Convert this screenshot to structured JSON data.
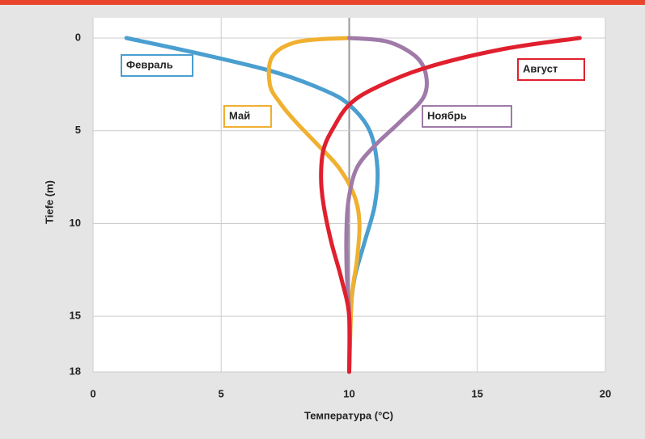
{
  "chart_data": {
    "type": "line",
    "xlabel": "Температура (°C)",
    "ylabel": "Tiefe (m)",
    "xlim": [
      0,
      20
    ],
    "xticks": [
      0,
      5,
      10,
      15,
      20
    ],
    "ylim": [
      0,
      18
    ],
    "yticks": [
      0,
      5,
      10,
      15,
      18
    ],
    "y_inverted": true,
    "grid": true,
    "series": [
      {
        "name": "Февраль",
        "color": "#4a9fd0",
        "x": [
          1.3,
          4,
          7,
          9,
          10,
          10.8,
          11.1,
          11,
          10.6,
          10.2,
          10.05,
          10
        ],
        "y": [
          0,
          0.8,
          1.8,
          2.8,
          3.6,
          5,
          7,
          9,
          11,
          13,
          15,
          18
        ]
      },
      {
        "name": "Май",
        "color": "#f0b030",
        "x": [
          10,
          8,
          7,
          6.9,
          7.3,
          7.9,
          8.8,
          9.6,
          10.2,
          10.4,
          10.3,
          10.1,
          10
        ],
        "y": [
          0,
          0.2,
          1,
          2.5,
          3.5,
          4.5,
          5.8,
          7,
          8.5,
          10,
          12,
          14,
          18
        ]
      },
      {
        "name": "Ноябрь",
        "color": "#a07aa8",
        "x": [
          10,
          11.5,
          12.6,
          13,
          12.9,
          12,
          11,
          10.3,
          10,
          9.9,
          9.9,
          10,
          10
        ],
        "y": [
          0,
          0.2,
          1,
          2,
          3.2,
          4.5,
          5.8,
          7,
          8.5,
          10,
          12.5,
          15,
          18
        ]
      },
      {
        "name": "Август",
        "color": "#e0202e",
        "x": [
          19,
          16,
          13,
          11,
          10,
          9.4,
          9,
          8.9,
          9,
          9.3,
          9.7,
          10,
          10
        ],
        "y": [
          0,
          0.6,
          1.6,
          2.7,
          3.6,
          4.8,
          6,
          7.5,
          9,
          11,
          13,
          15,
          18
        ]
      }
    ]
  }
}
